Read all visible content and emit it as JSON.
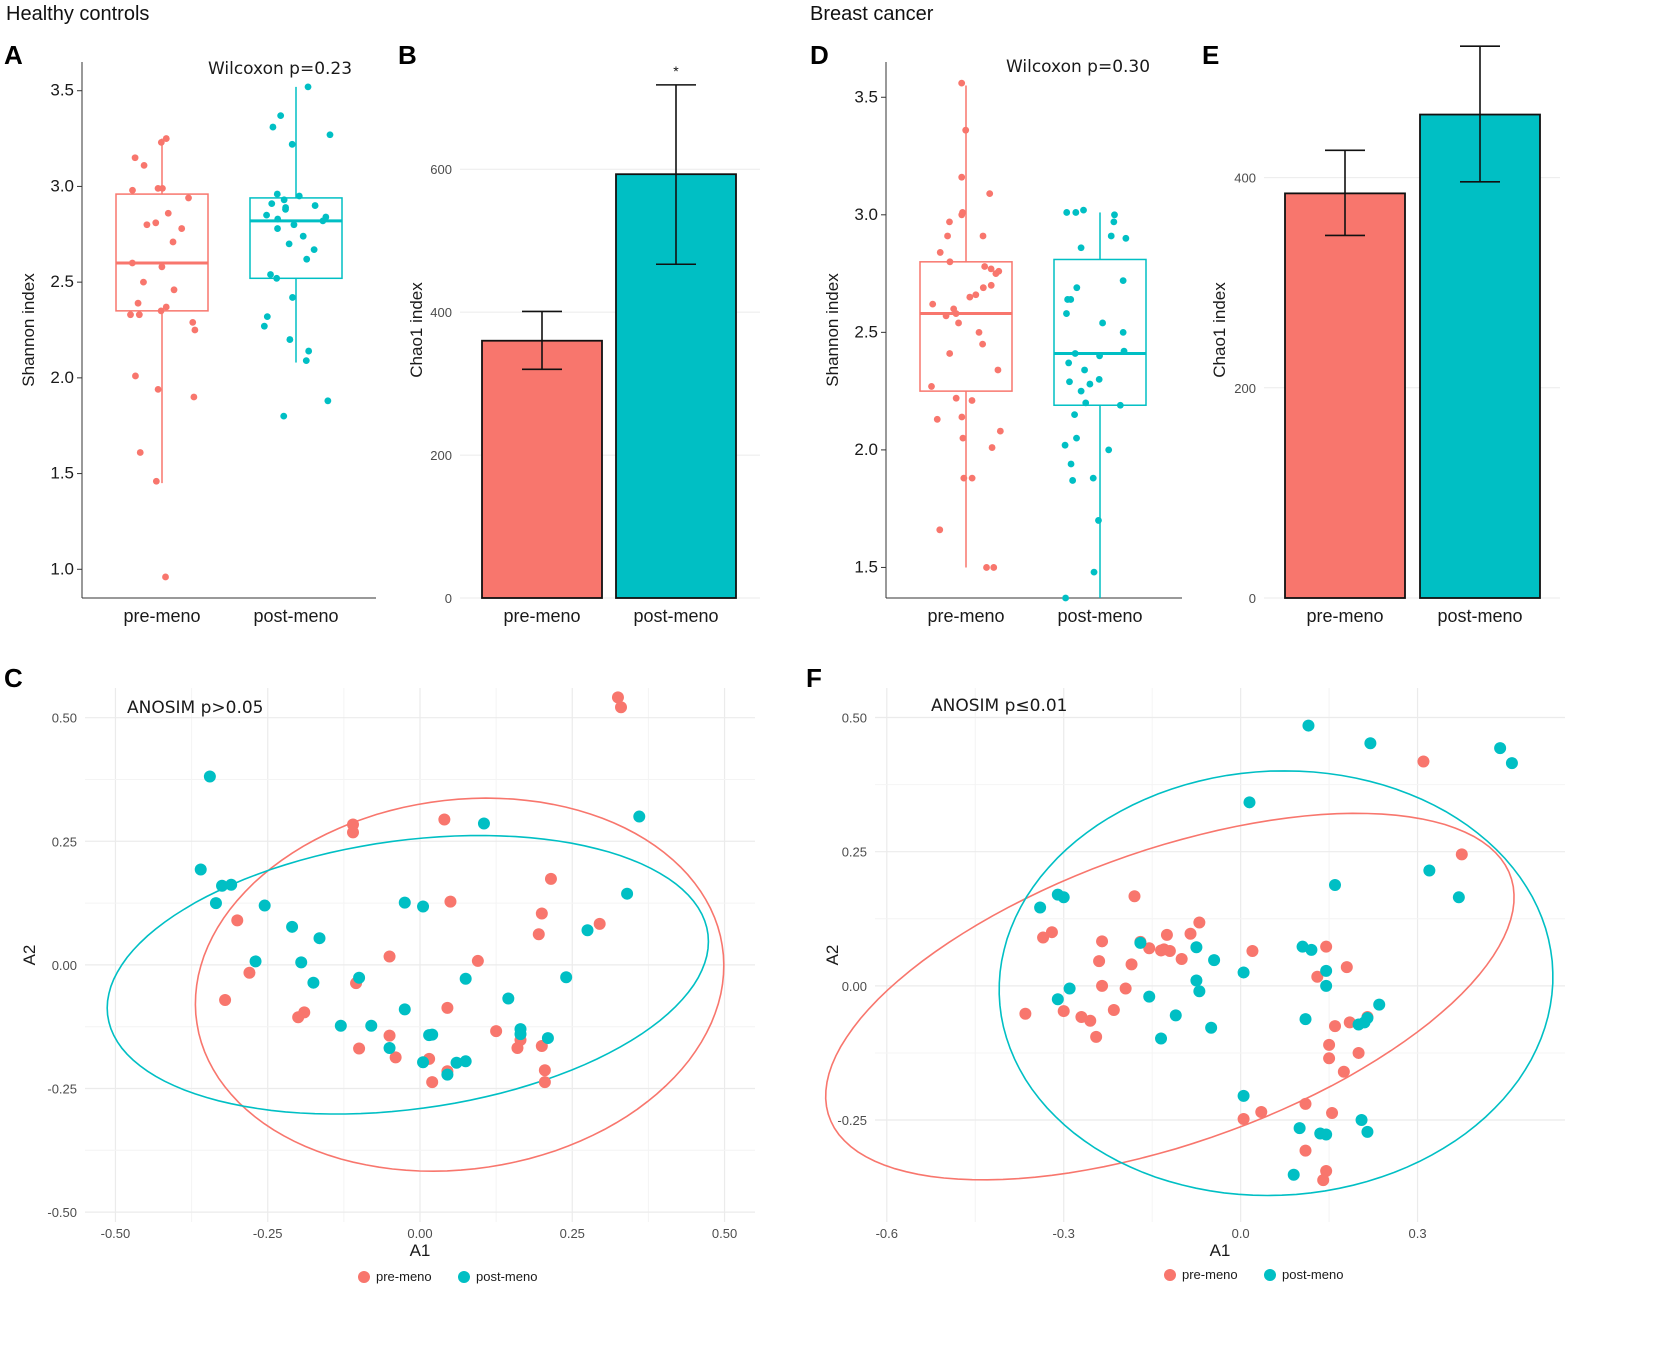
{
  "figure": {
    "group_left": "Healthy controls",
    "group_right": "Breast cancer",
    "colors": {
      "pre": "#F8766D",
      "post": "#00BFC4"
    }
  },
  "chart_data": [
    {
      "id": "A",
      "type": "box",
      "ylabel": "Shannon index",
      "ylim": [
        0.85,
        3.65
      ],
      "yticks": [
        "1.0",
        "1.5",
        "2.0",
        "2.5",
        "3.0",
        "3.5"
      ],
      "annotation": "Wilcoxon p=0.23",
      "categories": [
        "pre-meno",
        "post-meno"
      ],
      "boxes": [
        {
          "q1": 2.35,
          "median": 2.6,
          "q3": 2.96,
          "whisker_low": 1.45,
          "whisker_high": 3.25
        },
        {
          "q1": 2.52,
          "median": 2.82,
          "q3": 2.94,
          "whisker_low": 2.08,
          "whisker_high": 3.52
        }
      ],
      "points": [
        [
          3.23,
          3.25,
          3.15,
          3.11,
          2.99,
          2.99,
          2.98,
          2.94,
          2.86,
          2.81,
          2.8,
          2.78,
          2.71,
          2.6,
          2.58,
          2.5,
          2.46,
          2.39,
          2.37,
          2.35,
          2.33,
          2.33,
          2.29,
          2.25,
          2.01,
          1.94,
          1.9,
          1.61,
          1.46,
          0.96
        ],
        [
          3.52,
          3.37,
          3.31,
          3.27,
          3.22,
          2.96,
          2.95,
          2.93,
          2.91,
          2.9,
          2.89,
          2.88,
          2.85,
          2.84,
          2.83,
          2.82,
          2.8,
          2.78,
          2.74,
          2.7,
          2.67,
          2.62,
          2.54,
          2.52,
          2.42,
          2.32,
          2.27,
          2.2,
          2.14,
          2.09,
          1.88,
          1.8
        ]
      ]
    },
    {
      "id": "B",
      "type": "bar",
      "ylabel": "Chao1 index",
      "ylim": [
        0,
        750
      ],
      "yticks": [
        "0",
        "200",
        "400",
        "600"
      ],
      "categories": [
        "pre-meno",
        "post-meno"
      ],
      "values": [
        360,
        593
      ],
      "err_low": [
        320,
        467
      ],
      "err_high": [
        401,
        718
      ],
      "sig": [
        "",
        "*"
      ]
    },
    {
      "id": "D",
      "type": "box",
      "ylabel": "Shannon index",
      "ylim": [
        1.37,
        3.65
      ],
      "yticks": [
        "1.5",
        "2.0",
        "2.5",
        "3.0",
        "3.5"
      ],
      "annotation": "Wilcoxon p=0.30",
      "categories": [
        "pre-meno",
        "post-meno"
      ],
      "boxes": [
        {
          "q1": 2.25,
          "median": 2.58,
          "q3": 2.8,
          "whisker_low": 1.5,
          "whisker_high": 3.55
        },
        {
          "q1": 2.19,
          "median": 2.41,
          "q3": 2.81,
          "whisker_low": 1.37,
          "whisker_high": 3.01
        }
      ],
      "points": [
        [
          3.56,
          3.36,
          3.16,
          3.09,
          3.01,
          3.0,
          2.97,
          2.91,
          2.91,
          2.84,
          2.8,
          2.78,
          2.77,
          2.76,
          2.75,
          2.7,
          2.69,
          2.66,
          2.65,
          2.62,
          2.6,
          2.58,
          2.57,
          2.54,
          2.5,
          2.45,
          2.41,
          2.34,
          2.27,
          2.22,
          2.21,
          2.14,
          2.13,
          2.08,
          2.05,
          2.01,
          1.88,
          1.88,
          1.66,
          1.5,
          1.5
        ],
        [
          3.02,
          3.01,
          3.01,
          3.0,
          2.97,
          2.91,
          2.9,
          2.86,
          2.72,
          2.69,
          2.64,
          2.64,
          2.58,
          2.54,
          2.5,
          2.42,
          2.41,
          2.4,
          2.37,
          2.34,
          2.3,
          2.29,
          2.28,
          2.25,
          2.2,
          2.19,
          2.15,
          2.05,
          2.02,
          2.0,
          1.94,
          1.88,
          1.87,
          1.7,
          1.48,
          1.37
        ]
      ]
    },
    {
      "id": "E",
      "type": "bar",
      "ylabel": "Chao1 index",
      "ylim": [
        0,
        510
      ],
      "yticks": [
        "0",
        "200",
        "400"
      ],
      "categories": [
        "pre-meno",
        "post-meno"
      ],
      "values": [
        385,
        460
      ],
      "err_low": [
        345,
        396
      ],
      "err_high": [
        426,
        525
      ],
      "sig": [
        "",
        ""
      ]
    },
    {
      "id": "C",
      "type": "scatter",
      "xlabel": "A1",
      "ylabel": "A2",
      "xlim": [
        -0.55,
        0.55
      ],
      "ylim": [
        -0.52,
        0.56
      ],
      "xticks": [
        -0.5,
        -0.25,
        0,
        0.25,
        0.5
      ],
      "xtick_labels": [
        "-0.50",
        "-0.25",
        "0.00",
        "0.25",
        "0.50"
      ],
      "yticks": [
        -0.5,
        -0.25,
        0,
        0.25,
        0.5
      ],
      "ytick_labels": [
        "-0.50",
        "-0.25",
        "0.00",
        "0.25",
        "0.50"
      ],
      "annotation": "ANOSIM p>0.05",
      "legend": [
        "pre-meno",
        "post-meno"
      ],
      "series": [
        {
          "name": "pre-meno",
          "points": [
            [
              0.325,
              0.541
            ],
            [
              0.33,
              0.521
            ],
            [
              -0.11,
              0.284
            ],
            [
              -0.11,
              0.268
            ],
            [
              0.04,
              0.294
            ],
            [
              0.215,
              0.174
            ],
            [
              0.05,
              0.128
            ],
            [
              0.2,
              0.104
            ],
            [
              -0.3,
              0.09
            ],
            [
              0.295,
              0.083
            ],
            [
              0.195,
              0.062
            ],
            [
              -0.05,
              0.017
            ],
            [
              0.095,
              0.008
            ],
            [
              -0.28,
              -0.016
            ],
            [
              -0.105,
              -0.037
            ],
            [
              -0.32,
              -0.071
            ],
            [
              0.045,
              -0.087
            ],
            [
              -0.19,
              -0.096
            ],
            [
              -0.2,
              -0.106
            ],
            [
              0.125,
              -0.134
            ],
            [
              0.165,
              -0.152
            ],
            [
              -0.05,
              -0.143
            ],
            [
              0.2,
              -0.164
            ],
            [
              -0.1,
              -0.169
            ],
            [
              0.16,
              -0.168
            ],
            [
              -0.04,
              -0.187
            ],
            [
              0.015,
              -0.19
            ],
            [
              0.205,
              -0.213
            ],
            [
              0.045,
              -0.215
            ],
            [
              0.205,
              -0.237
            ],
            [
              0.02,
              -0.237
            ]
          ]
        },
        {
          "name": "post-meno",
          "points": [
            [
              -0.345,
              0.381
            ],
            [
              0.36,
              0.3
            ],
            [
              0.105,
              0.286
            ],
            [
              -0.36,
              0.193
            ],
            [
              -0.31,
              0.162
            ],
            [
              -0.325,
              0.16
            ],
            [
              -0.335,
              0.125
            ],
            [
              -0.255,
              0.12
            ],
            [
              -0.025,
              0.126
            ],
            [
              0.005,
              0.118
            ],
            [
              -0.21,
              0.077
            ],
            [
              0.275,
              0.07
            ],
            [
              -0.165,
              0.054
            ],
            [
              -0.27,
              0.007
            ],
            [
              -0.195,
              0.005
            ],
            [
              -0.1,
              -0.026
            ],
            [
              0.075,
              -0.028
            ],
            [
              0.24,
              -0.025
            ],
            [
              -0.175,
              -0.036
            ],
            [
              0.34,
              0.144
            ],
            [
              0.145,
              -0.068
            ],
            [
              -0.025,
              -0.09
            ],
            [
              -0.13,
              -0.123
            ],
            [
              -0.08,
              -0.123
            ],
            [
              0.165,
              -0.13
            ],
            [
              0.165,
              -0.14
            ],
            [
              0.015,
              -0.142
            ],
            [
              0.02,
              -0.141
            ],
            [
              0.21,
              -0.148
            ],
            [
              -0.05,
              -0.168
            ],
            [
              0.005,
              -0.197
            ],
            [
              0.075,
              -0.195
            ],
            [
              0.06,
              -0.198
            ],
            [
              0.045,
              -0.222
            ]
          ]
        }
      ],
      "ellipses": [
        {
          "name": "pre-meno",
          "cx": 0.065,
          "cy": -0.04,
          "rx": 0.44,
          "ry": 0.37,
          "angle": 18
        },
        {
          "name": "post-meno",
          "cx": -0.02,
          "cy": -0.02,
          "rx": 0.5,
          "ry": 0.27,
          "angle": 11
        }
      ]
    },
    {
      "id": "F",
      "type": "scatter",
      "xlabel": "A1",
      "ylabel": "A2",
      "xlim": [
        -0.62,
        0.55
      ],
      "ylim": [
        -0.44,
        0.555
      ],
      "xticks": [
        -0.6,
        -0.3,
        0,
        0.3
      ],
      "xtick_labels": [
        "-0.6",
        "-0.3",
        "0.0",
        "0.3"
      ],
      "yticks": [
        -0.25,
        0,
        0.25,
        0.5
      ],
      "ytick_labels": [
        "-0.25",
        "0.00",
        "0.25",
        "0.50"
      ],
      "annotation": "ANOSIM p≤0.01",
      "legend": [
        "pre-meno",
        "post-meno"
      ],
      "series": [
        {
          "name": "pre-meno",
          "points": [
            [
              0.31,
              0.418
            ],
            [
              0.375,
              0.245
            ],
            [
              -0.18,
              0.167
            ],
            [
              -0.07,
              0.118
            ],
            [
              -0.085,
              0.097
            ],
            [
              -0.235,
              0.083
            ],
            [
              -0.17,
              0.082
            ],
            [
              -0.125,
              0.095
            ],
            [
              -0.32,
              0.1
            ],
            [
              -0.335,
              0.09
            ],
            [
              -0.13,
              0.068
            ],
            [
              -0.135,
              0.066
            ],
            [
              -0.12,
              0.065
            ],
            [
              -0.155,
              0.07
            ],
            [
              0.02,
              0.065
            ],
            [
              0.145,
              0.073
            ],
            [
              -0.1,
              0.05
            ],
            [
              -0.24,
              0.046
            ],
            [
              -0.185,
              0.04
            ],
            [
              0.18,
              0.035
            ],
            [
              0.13,
              0.017
            ],
            [
              -0.235,
              0.0
            ],
            [
              -0.195,
              -0.005
            ],
            [
              -0.3,
              -0.047
            ],
            [
              -0.365,
              -0.052
            ],
            [
              -0.27,
              -0.058
            ],
            [
              -0.215,
              -0.045
            ],
            [
              -0.255,
              -0.065
            ],
            [
              -0.245,
              -0.095
            ],
            [
              0.215,
              -0.058
            ],
            [
              0.185,
              -0.068
            ],
            [
              0.16,
              -0.075
            ],
            [
              0.15,
              -0.11
            ],
            [
              0.2,
              -0.125
            ],
            [
              0.15,
              -0.135
            ],
            [
              0.175,
              -0.16
            ],
            [
              0.11,
              -0.22
            ],
            [
              0.155,
              -0.237
            ],
            [
              0.035,
              -0.235
            ],
            [
              0.005,
              -0.248
            ],
            [
              0.11,
              -0.307
            ],
            [
              0.145,
              -0.345
            ],
            [
              0.14,
              -0.362
            ]
          ]
        },
        {
          "name": "post-meno",
          "points": [
            [
              0.115,
              0.485
            ],
            [
              0.22,
              0.452
            ],
            [
              0.44,
              0.443
            ],
            [
              0.46,
              0.415
            ],
            [
              0.015,
              0.342
            ],
            [
              0.32,
              0.215
            ],
            [
              0.37,
              0.165
            ],
            [
              0.16,
              0.188
            ],
            [
              -0.34,
              0.146
            ],
            [
              -0.31,
              0.17
            ],
            [
              -0.3,
              0.165
            ],
            [
              -0.075,
              0.072
            ],
            [
              -0.17,
              0.08
            ],
            [
              0.105,
              0.073
            ],
            [
              0.12,
              0.067
            ],
            [
              -0.045,
              0.048
            ],
            [
              0.005,
              0.025
            ],
            [
              0.145,
              0.028
            ],
            [
              -0.075,
              0.01
            ],
            [
              -0.29,
              -0.005
            ],
            [
              -0.07,
              -0.01
            ],
            [
              0.145,
              0.0
            ],
            [
              -0.155,
              -0.02
            ],
            [
              -0.31,
              -0.025
            ],
            [
              0.235,
              -0.035
            ],
            [
              -0.11,
              -0.055
            ],
            [
              0.215,
              -0.06
            ],
            [
              0.21,
              -0.068
            ],
            [
              0.11,
              -0.062
            ],
            [
              0.2,
              -0.072
            ],
            [
              -0.05,
              -0.078
            ],
            [
              -0.135,
              -0.098
            ],
            [
              0.005,
              -0.205
            ],
            [
              0.1,
              -0.265
            ],
            [
              0.135,
              -0.275
            ],
            [
              0.145,
              -0.277
            ],
            [
              0.205,
              -0.25
            ],
            [
              0.215,
              -0.272
            ],
            [
              0.09,
              -0.352
            ]
          ]
        }
      ],
      "ellipses": [
        {
          "name": "pre-meno",
          "cx": -0.12,
          "cy": -0.02,
          "rx": 0.62,
          "ry": 0.27,
          "angle": 22
        },
        {
          "name": "post-meno",
          "cx": 0.06,
          "cy": 0.005,
          "rx": 0.47,
          "ry": 0.395,
          "angle": 5
        }
      ]
    }
  ]
}
